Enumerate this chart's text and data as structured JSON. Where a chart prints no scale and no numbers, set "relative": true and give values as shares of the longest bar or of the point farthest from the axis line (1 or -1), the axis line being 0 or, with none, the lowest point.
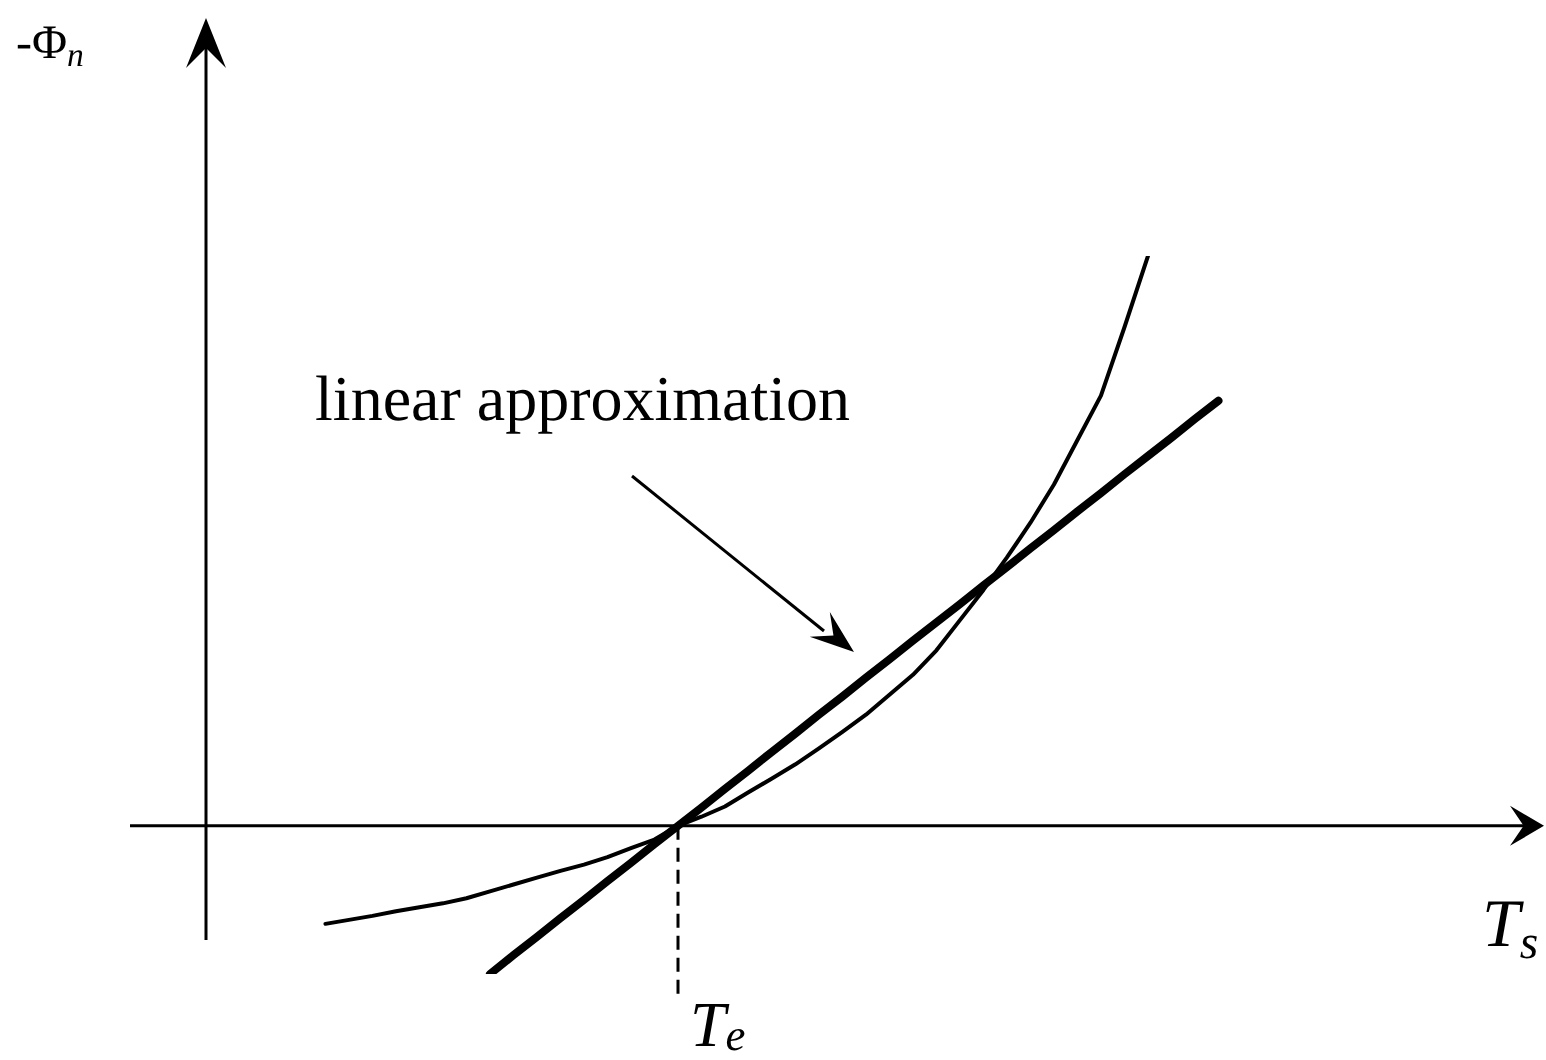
{
  "chart_data": {
    "type": "line",
    "relative": true,
    "xlabel": "T$_{s}$",
    "ylabel": "-Φ$_{n}$",
    "categories": [
      null,
      null,
      null,
      null,
      null,
      null,
      null,
      null,
      null,
      null,
      null,
      null,
      null,
      null,
      null,
      null,
      null,
      null,
      null,
      null,
      null,
      null,
      null,
      null,
      null,
      null,
      null,
      null,
      null,
      null,
      null,
      null,
      null,
      null,
      null,
      null,
      null,
      null,
      null,
      null,
      null,
      null,
      null,
      null,
      null,
      null,
      null,
      null,
      null,
      null,
      null,
      null,
      null,
      null,
      null,
      null,
      null
    ],
    "series": [
      {
        "color": "#000000",
        "values": [
          null,
          null,
          null,
          null,
          null,
          -0.172,
          -0.165,
          -0.158,
          -0.15,
          -0.143,
          -0.136,
          -0.127,
          -0.115,
          -0.103,
          -0.091,
          -0.079,
          -0.068,
          -0.055,
          -0.039,
          -0.024,
          0,
          0.016,
          0.034,
          0.059,
          0.083,
          0.108,
          0.136,
          0.165,
          0.195,
          0.23,
          0.265,
          0.308,
          0.361,
          0.414,
          0.471,
          0.532,
          0.599,
          0.677,
          0.755,
          0.875,
          1,
          null,
          null,
          null,
          null,
          null,
          null,
          null,
          null,
          null,
          null,
          null,
          null,
          null,
          null,
          null,
          null
        ]
      },
      {
        "type": "line",
        "color": "#000000",
        "values": [
          null,
          null,
          null,
          null,
          null,
          null,
          null,
          null,
          null,
          null,
          null,
          null,
          -0.26,
          -0.227,
          -0.195,
          -0.162,
          -0.13,
          -0.097,
          -0.065,
          -0.032,
          0,
          0.032,
          0.065,
          0.097,
          0.13,
          0.162,
          0.195,
          0.227,
          0.26,
          0.292,
          0.325,
          0.357,
          0.389,
          0.422,
          0.454,
          0.487,
          0.519,
          0.552,
          0.584,
          0.617,
          0.649,
          0.681,
          0.714,
          0.746,
          null,
          null,
          null,
          null,
          null,
          null,
          null,
          null,
          null,
          null,
          null,
          null,
          null
        ]
      }
    ],
    "annotations": [
      "linear approximation",
      "T$_{e}$"
    ]
  }
}
